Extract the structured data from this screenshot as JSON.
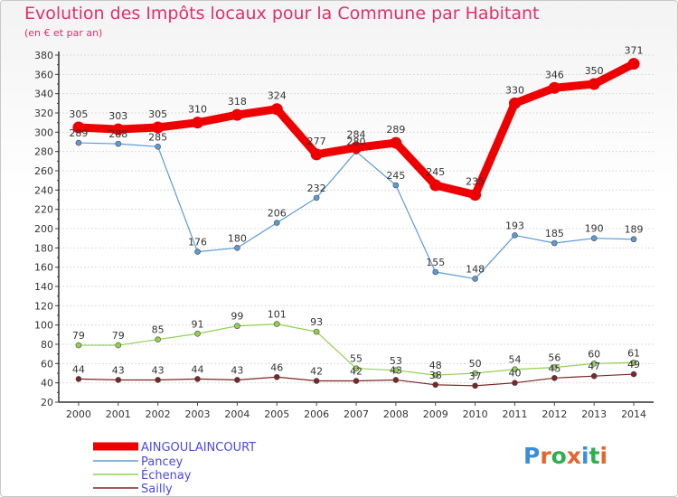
{
  "title": "Evolution des Impôts locaux pour la Commune par Habitant",
  "subtitle": "(en € et par an)",
  "logo": "Proxiti",
  "chart_data": {
    "type": "line",
    "title": "Evolution des Impôts locaux pour la Commune par Habitant",
    "subtitle": "(en € et par an)",
    "x": [
      2000,
      2001,
      2002,
      2003,
      2004,
      2005,
      2006,
      2007,
      2008,
      2009,
      2010,
      2011,
      2012,
      2013,
      2014
    ],
    "ylim": [
      20,
      380
    ],
    "yticks": [
      20,
      40,
      60,
      80,
      100,
      120,
      140,
      160,
      180,
      200,
      220,
      240,
      260,
      280,
      300,
      320,
      340,
      360,
      380
    ],
    "grid": "horizontal",
    "legend": "bottom-left",
    "series": [
      {
        "name": "AINGOULAINCOURT",
        "color": "#ee0000",
        "values": [
          305,
          303,
          305,
          310,
          318,
          324,
          277,
          284,
          289,
          245,
          235,
          330,
          346,
          350,
          371
        ]
      },
      {
        "name": "Pancey",
        "color": "#5b9bd5",
        "values": [
          289,
          288,
          285,
          176,
          180,
          206,
          232,
          280,
          245,
          155,
          148,
          193,
          185,
          190,
          189
        ]
      },
      {
        "name": "Échenay",
        "color": "#92d050",
        "values": [
          79,
          79,
          85,
          91,
          99,
          101,
          93,
          55,
          53,
          48,
          50,
          54,
          56,
          60,
          61
        ]
      },
      {
        "name": "Sailly",
        "color": "#7b2626",
        "values": [
          44,
          43,
          43,
          44,
          43,
          46,
          42,
          42,
          43,
          38,
          37,
          40,
          45,
          47,
          49
        ]
      }
    ]
  }
}
